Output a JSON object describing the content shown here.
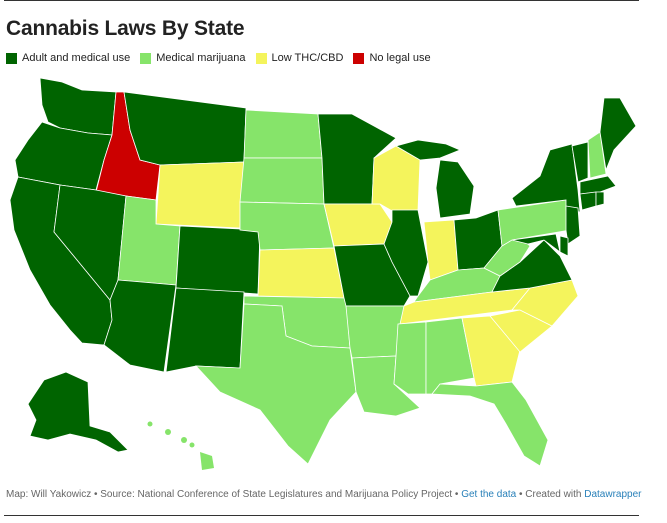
{
  "title": "Cannabis Laws By State",
  "colors": {
    "adult_medical": "#006400",
    "medical": "#86e46a",
    "low_thc": "#f4f45c",
    "no_legal": "#cc0000"
  },
  "legend": [
    {
      "label": "Adult and medical use",
      "color": "#006400"
    },
    {
      "label": "Medical marijuana",
      "color": "#86e46a"
    },
    {
      "label": "Low THC/CBD",
      "color": "#f4f45c"
    },
    {
      "label": "No legal use",
      "color": "#cc0000"
    }
  ],
  "footer": {
    "credit": "Map: Will Yakowicz • Source: National Conference of State Legislatures and Marijuana Policy Project •",
    "get_data": "Get the data",
    "sep": "• Created with",
    "tool": "Datawrapper"
  }
}
